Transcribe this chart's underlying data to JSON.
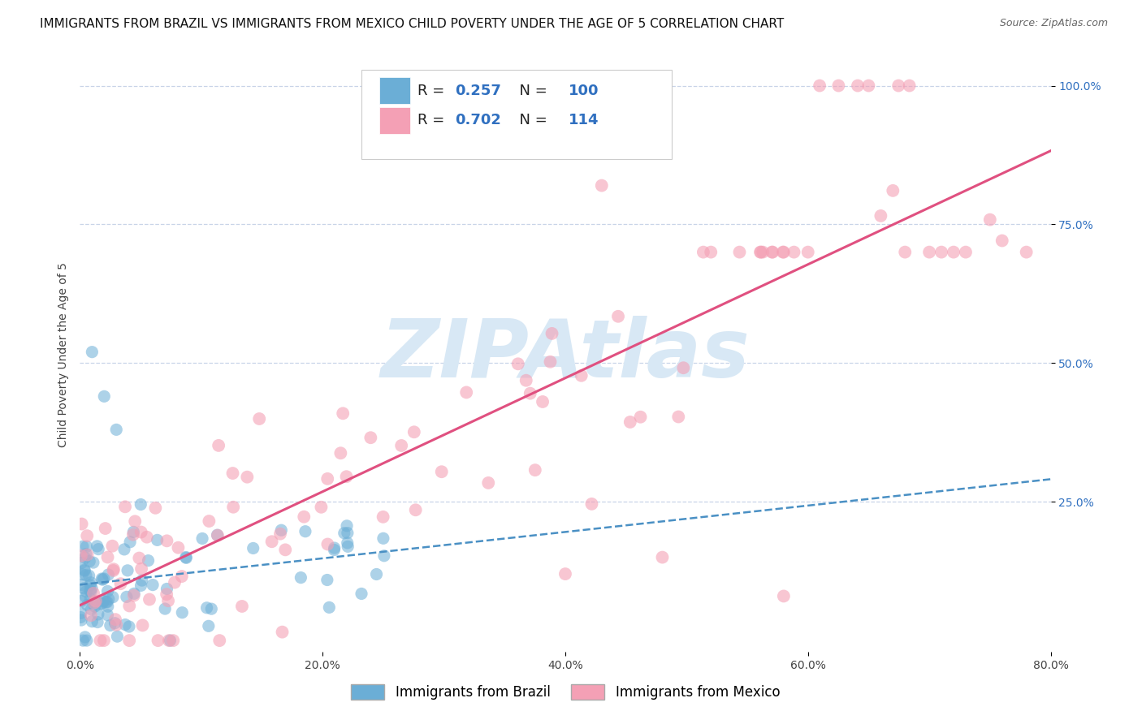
{
  "title": "IMMIGRANTS FROM BRAZIL VS IMMIGRANTS FROM MEXICO CHILD POVERTY UNDER THE AGE OF 5 CORRELATION CHART",
  "source": "Source: ZipAtlas.com",
  "ylabel": "Child Poverty Under the Age of 5",
  "xlim": [
    0.0,
    0.8
  ],
  "ylim": [
    -0.02,
    1.05
  ],
  "xtick_labels": [
    "0.0%",
    "20.0%",
    "40.0%",
    "60.0%",
    "80.0%"
  ],
  "xtick_values": [
    0.0,
    0.2,
    0.4,
    0.6,
    0.8
  ],
  "ytick_labels_right": [
    "25.0%",
    "50.0%",
    "75.0%",
    "100.0%"
  ],
  "ytick_values_right": [
    0.25,
    0.5,
    0.75,
    1.0
  ],
  "brazil_color": "#6baed6",
  "mexico_color": "#f4a0b5",
  "brazil_R": 0.257,
  "brazil_N": 100,
  "mexico_R": 0.702,
  "mexico_N": 114,
  "brazil_line_color": "#4a90c4",
  "mexico_line_color": "#e05080",
  "watermark": "ZIPAtlas",
  "watermark_color": "#d8e8f5",
  "legend_label_brazil": "Immigrants from Brazil",
  "legend_label_mexico": "Immigrants from Mexico",
  "background_color": "#ffffff",
  "grid_color": "#c8d4e8",
  "stat_color": "#3070c0",
  "title_fontsize": 11,
  "source_fontsize": 9,
  "axis_label_fontsize": 10,
  "tick_fontsize": 10,
  "legend_fontsize": 13
}
